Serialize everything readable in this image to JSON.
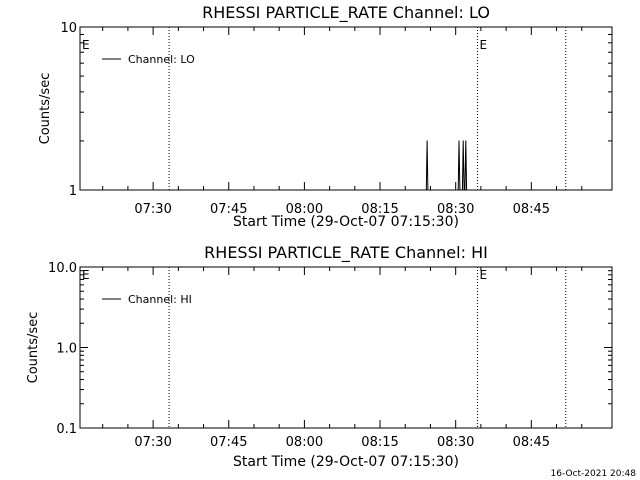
{
  "footer": {
    "timestamp": "16-Oct-2021 20:48"
  },
  "chart_data": [
    {
      "type": "line",
      "title": "RHESSI PARTICLE_RATE Channel: LO",
      "xlabel": "Start Time (29-Oct-07 07:15:30)",
      "ylabel": "Counts/sec",
      "y_scale": "log",
      "ylim": [
        1,
        10
      ],
      "y_ticks": [
        {
          "value": 1,
          "label": "1"
        },
        {
          "value": 10,
          "label": "10"
        }
      ],
      "xlim": [
        "07:15:30",
        "09:01:00"
      ],
      "x_ticks": [
        "07:30",
        "07:45",
        "08:00",
        "08:15",
        "08:30",
        "08:45"
      ],
      "grid": false,
      "legend_position": "top-left",
      "series": [
        {
          "name": "Channel: LO",
          "color": "#000000",
          "points": [
            {
              "x": "08:24:10",
              "y": 1
            },
            {
              "x": "08:24:20",
              "y": 2
            },
            {
              "x": "08:24:30",
              "y": 1
            },
            {
              "x": "08:30:30",
              "y": 1
            },
            {
              "x": "08:30:40",
              "y": 2
            },
            {
              "x": "08:30:50",
              "y": 1
            },
            {
              "x": "08:31:20",
              "y": 1
            },
            {
              "x": "08:31:30",
              "y": 2
            },
            {
              "x": "08:31:40",
              "y": 1
            },
            {
              "x": "08:31:50",
              "y": 1
            },
            {
              "x": "08:32:00",
              "y": 2
            },
            {
              "x": "08:32:10",
              "y": 1
            }
          ]
        }
      ],
      "annotations": [
        {
          "x": "07:15:30",
          "label": "E"
        },
        {
          "x": "08:34:20",
          "label": "E"
        }
      ],
      "vertical_dotted_lines": [
        "07:33:10",
        "08:34:20",
        "08:51:50"
      ]
    },
    {
      "type": "line",
      "title": "RHESSI PARTICLE_RATE Channel: HI",
      "xlabel": "Start Time (29-Oct-07 07:15:30)",
      "ylabel": "Counts/sec",
      "y_scale": "log",
      "ylim": [
        0.1,
        10
      ],
      "y_ticks": [
        {
          "value": 0.1,
          "label": "0.1"
        },
        {
          "value": 1,
          "label": "1.0"
        },
        {
          "value": 10,
          "label": "10.0"
        }
      ],
      "xlim": [
        "07:15:30",
        "09:01:00"
      ],
      "x_ticks": [
        "07:30",
        "07:45",
        "08:00",
        "08:15",
        "08:30",
        "08:45"
      ],
      "grid": false,
      "legend_position": "top-left",
      "series": [
        {
          "name": "Channel: HI",
          "color": "#000000",
          "points": []
        }
      ],
      "annotations": [
        {
          "x": "07:15:30",
          "label": "E"
        },
        {
          "x": "08:34:20",
          "label": "E"
        }
      ],
      "vertical_dotted_lines": [
        "07:33:10",
        "08:34:20",
        "08:51:50"
      ]
    }
  ]
}
